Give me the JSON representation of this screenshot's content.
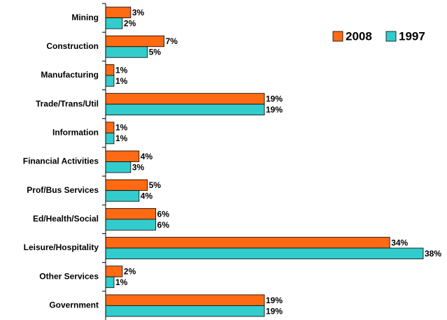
{
  "chart_data": {
    "type": "hbar",
    "categories": [
      "Mining",
      "Construction",
      "Manufacturing",
      "Trade/Trans/Util",
      "Information",
      "Financial Activities",
      "Prof/Bus Services",
      "Ed/Health/Social",
      "Leisure/Hospitality",
      "Other Services",
      "Government"
    ],
    "series": [
      {
        "name": "2008",
        "color": "#ff6a13",
        "values": [
          3,
          7,
          1,
          19,
          1,
          4,
          5,
          6,
          34,
          2,
          19
        ],
        "value_labels": [
          "3%",
          "7%",
          "1%",
          "19%",
          "1%",
          "4%",
          "5%",
          "6%",
          "34%",
          "2%",
          "19%"
        ]
      },
      {
        "name": "1997",
        "color": "#33cccc",
        "values": [
          2,
          5,
          1,
          19,
          1,
          3,
          4,
          6,
          38,
          1,
          19
        ],
        "value_labels": [
          "2%",
          "5%",
          "1%",
          "19%",
          "1%",
          "3%",
          "4%",
          "6%",
          "38%",
          "1%",
          "19%"
        ]
      }
    ],
    "legend": "upper right"
  }
}
